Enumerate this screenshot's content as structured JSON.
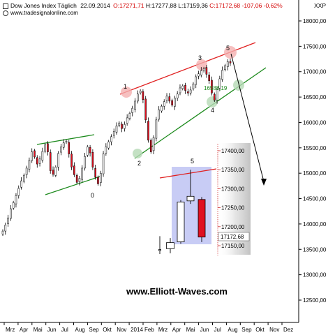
{
  "header": {
    "instrument": "Dow Jones Index Täglich",
    "date": "22.09.2014",
    "open_label": "O:17271,71",
    "high_label": "H:17277,88",
    "low_label": "L:17159,36",
    "close_label": "C:17172,68",
    "change_label": "-107,06 -0,62%",
    "source": "www.tradesignalonline.com",
    "currency": "XXP"
  },
  "watermark": "www.Elliott-Waves.com",
  "colors": {
    "up_candle": "#ffffff",
    "down_candle": "#e01020",
    "upper_channel": "#e02020",
    "lower_channel": "#1c8a1c",
    "inset_bg": "#c8ccf5",
    "marker_red": "#f4b0b0",
    "marker_green": "#b5dab5"
  },
  "chart_data": [
    {
      "type": "candlestick",
      "title": "Dow Jones Index Täglich",
      "y_ticks": [
        12500,
        13000,
        13500,
        14000,
        14500,
        15000,
        15500,
        16000,
        16500,
        17000,
        17500,
        18000
      ],
      "y_tick_labels": [
        "12500,00",
        "13000,00",
        "13500,00",
        "14000,00",
        "14500,00",
        "15000,00",
        "15500,00",
        "16000,00",
        "16500,00",
        "17000,00",
        "17500,00",
        "18000,00"
      ],
      "ylim": [
        12150,
        18250
      ],
      "x_tick_labels": [
        "Mrz",
        "Apr",
        "Mai",
        "Jun",
        "Jul",
        "Aug",
        "Sep",
        "Okt",
        "Nov",
        "2014",
        "Feb",
        "Mrz",
        "Apr",
        "Mai",
        "Jun",
        "Jul",
        "Aug",
        "Sep",
        "Okt",
        "Nov",
        "Dez"
      ],
      "closes": [
        13860,
        13980,
        14120,
        14300,
        14420,
        14560,
        14700,
        14850,
        14960,
        15100,
        15250,
        15420,
        15320,
        15180,
        15280,
        15430,
        15560,
        15420,
        15050,
        14980,
        15120,
        15390,
        15520,
        15600,
        15630,
        15380,
        15120,
        14970,
        14820,
        14900,
        15100,
        15330,
        15520,
        15400,
        15120,
        14920,
        14790,
        15000,
        15380,
        15520,
        15620,
        15720,
        15820,
        15930,
        15990,
        15880,
        15960,
        16090,
        16180,
        16280,
        16420,
        16560,
        16620,
        16450,
        16050,
        15650,
        15420,
        15700,
        16050,
        16250,
        16320,
        16410,
        16520,
        16420,
        16340,
        16480,
        16560,
        16680,
        16720,
        16630,
        16580,
        16640,
        16760,
        16900,
        16960,
        17020,
        17060,
        16950,
        16820,
        16580,
        16440,
        16650,
        16860,
        17030,
        17120,
        17200,
        17172
      ],
      "annotations": [
        {
          "label": "0",
          "value": 14750
        },
        {
          "label": "1",
          "value": 16588
        },
        {
          "label": "2",
          "value": 15340
        },
        {
          "label": "3",
          "value": 17150
        },
        {
          "label": "4",
          "value": 16340
        },
        {
          "label": "5",
          "value": 17350
        },
        {
          "label": "16588,19",
          "value": 16588.19
        }
      ]
    },
    {
      "type": "candlestick",
      "title": "",
      "y_ticks": [
        17150,
        17200,
        17250,
        17300,
        17350,
        17400
      ],
      "y_tick_labels": [
        "17150,00",
        "17200,00",
        "17250,00",
        "17300,00",
        "17350,00",
        "17400,00"
      ],
      "ylim": [
        17110,
        17420
      ],
      "last_value_label": "17172,68",
      "annotation": "5",
      "candles": [
        {
          "open": 17140,
          "high": 17175,
          "low": 17128,
          "close": 17140
        },
        {
          "open": 17142,
          "high": 17170,
          "low": 17130,
          "close": 17158
        },
        {
          "open": 17160,
          "high": 17270,
          "low": 17155,
          "close": 17265
        },
        {
          "open": 17268,
          "high": 17350,
          "low": 17260,
          "close": 17280
        },
        {
          "open": 17271.71,
          "high": 17277.88,
          "low": 17159.36,
          "close": 17172.68
        }
      ]
    }
  ]
}
